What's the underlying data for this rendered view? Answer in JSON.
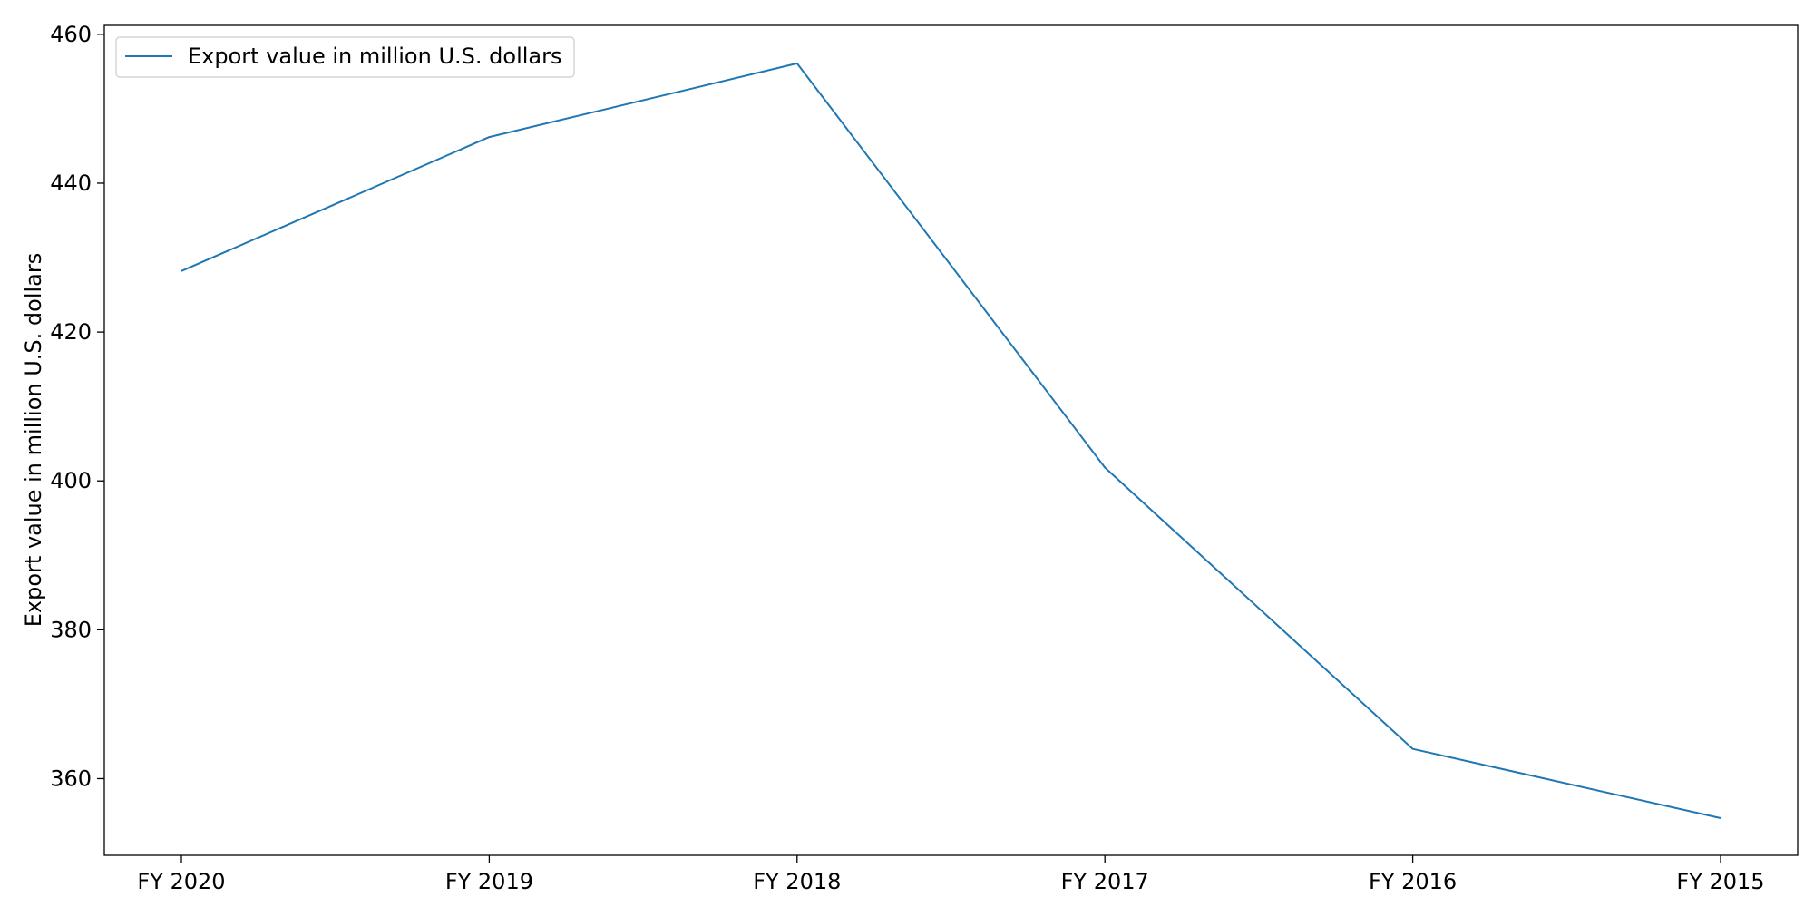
{
  "chart_data": {
    "type": "line",
    "title": "",
    "xlabel": "",
    "ylabel": "Export value in million U.S. dollars",
    "categories": [
      "FY 2020",
      "FY 2019",
      "FY 2018",
      "FY 2017",
      "FY 2016",
      "FY 2015"
    ],
    "series": [
      {
        "name": "Export value in million U.S. dollars",
        "values": [
          428.2,
          446.2,
          456.1,
          401.8,
          364.0,
          354.7
        ],
        "color": "#1f77b4"
      }
    ],
    "ylim": [
      349.7,
      461.2
    ],
    "yticks": [
      360,
      380,
      400,
      420,
      440,
      460
    ],
    "grid": false,
    "legend_position": "upper left"
  }
}
